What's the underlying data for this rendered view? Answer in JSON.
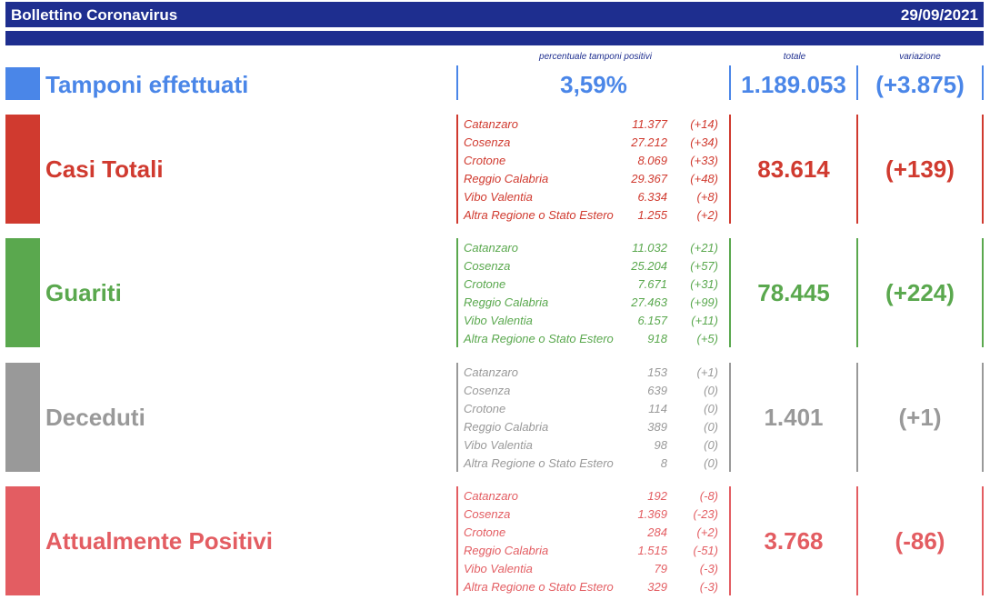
{
  "header": {
    "title": "Bollettino Coronavirus",
    "date": "29/09/2021"
  },
  "columns": {
    "pct": "percentuale tamponi positivi",
    "total": "totale",
    "change": "variazione"
  },
  "tamponi": {
    "label": "Tamponi effettuati",
    "pct": "3,59%",
    "total": "1.189.053",
    "change": "(+3.875)",
    "color": "#4a86e8"
  },
  "sections": [
    {
      "label": "Casi Totali",
      "total": "83.614",
      "change": "(+139)",
      "color": "#d03a2f",
      "rows": [
        {
          "p": "Catanzaro",
          "v": "11.377",
          "d": "(+14)"
        },
        {
          "p": "Cosenza",
          "v": "27.212",
          "d": "(+34)"
        },
        {
          "p": "Crotone",
          "v": "8.069",
          "d": "(+33)"
        },
        {
          "p": "Reggio Calabria",
          "v": "29.367",
          "d": "(+48)"
        },
        {
          "p": "Vibo Valentia",
          "v": "6.334",
          "d": "(+8)"
        },
        {
          "p": "Altra Regione o Stato Estero",
          "v": "1.255",
          "d": "(+2)"
        }
      ]
    },
    {
      "label": "Guariti",
      "total": "78.445",
      "change": "(+224)",
      "color": "#5aa84e",
      "rows": [
        {
          "p": "Catanzaro",
          "v": "11.032",
          "d": "(+21)"
        },
        {
          "p": "Cosenza",
          "v": "25.204",
          "d": "(+57)"
        },
        {
          "p": "Crotone",
          "v": "7.671",
          "d": "(+31)"
        },
        {
          "p": "Reggio Calabria",
          "v": "27.463",
          "d": "(+99)"
        },
        {
          "p": "Vibo Valentia",
          "v": "6.157",
          "d": "(+11)"
        },
        {
          "p": "Altra Regione o Stato Estero",
          "v": "918",
          "d": "(+5)"
        }
      ]
    },
    {
      "label": "Deceduti",
      "total": "1.401",
      "change": "(+1)",
      "color": "#999999",
      "rows": [
        {
          "p": "Catanzaro",
          "v": "153",
          "d": "(+1)"
        },
        {
          "p": "Cosenza",
          "v": "639",
          "d": "(0)"
        },
        {
          "p": "Crotone",
          "v": "114",
          "d": "(0)"
        },
        {
          "p": "Reggio Calabria",
          "v": "389",
          "d": "(0)"
        },
        {
          "p": "Vibo Valentia",
          "v": "98",
          "d": "(0)"
        },
        {
          "p": "Altra Regione o Stato Estero",
          "v": "8",
          "d": "(0)"
        }
      ]
    },
    {
      "label": "Attualmente Positivi",
      "total": "3.768",
      "change": "(-86)",
      "color": "#e35d62",
      "rows": [
        {
          "p": "Catanzaro",
          "v": "192",
          "d": "(-8)"
        },
        {
          "p": "Cosenza",
          "v": "1.369",
          "d": "(-23)"
        },
        {
          "p": "Crotone",
          "v": "284",
          "d": "(+2)"
        },
        {
          "p": "Reggio Calabria",
          "v": "1.515",
          "d": "(-51)"
        },
        {
          "p": "Vibo Valentia",
          "v": "79",
          "d": "(-3)"
        },
        {
          "p": "Altra Regione o Stato Estero",
          "v": "329",
          "d": "(-3)"
        }
      ]
    }
  ]
}
